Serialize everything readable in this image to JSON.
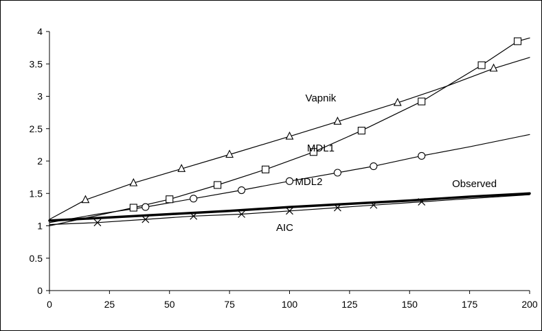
{
  "chart_data": {
    "type": "line",
    "title": "",
    "xlabel": "",
    "ylabel": "",
    "xlim": [
      0,
      200
    ],
    "ylim": [
      0,
      4
    ],
    "x_ticks": [
      0,
      25,
      50,
      75,
      100,
      125,
      150,
      175,
      200
    ],
    "y_ticks": [
      0,
      0.5,
      1,
      1.5,
      2,
      2.5,
      3,
      3.5,
      4
    ],
    "grid": false,
    "legend": "none",
    "colors": {
      "line": "#000000",
      "background": "#ffffff"
    },
    "series": [
      {
        "name": "Vapnik",
        "marker": "triangle",
        "line_width": 1.2,
        "x": [
          0,
          15,
          35,
          55,
          75,
          100,
          120,
          145,
          165,
          185,
          200
        ],
        "y": [
          1.1,
          1.4,
          1.66,
          1.88,
          2.1,
          2.38,
          2.61,
          2.9,
          3.15,
          3.43,
          3.6
        ],
        "marker_x": [
          15,
          35,
          55,
          75,
          100,
          120,
          145,
          185
        ],
        "marker_y": [
          1.4,
          1.66,
          1.88,
          2.1,
          2.38,
          2.61,
          2.9,
          3.43
        ],
        "label_at": [
          113,
          2.92
        ]
      },
      {
        "name": "MDL1",
        "marker": "square",
        "line_width": 1.2,
        "x": [
          0,
          35,
          50,
          70,
          90,
          110,
          130,
          155,
          180,
          195,
          200
        ],
        "y": [
          1.0,
          1.28,
          1.41,
          1.63,
          1.87,
          2.14,
          2.47,
          2.92,
          3.48,
          3.85,
          3.9
        ],
        "marker_x": [
          35,
          50,
          70,
          90,
          110,
          130,
          155,
          180,
          195
        ],
        "marker_y": [
          1.28,
          1.41,
          1.63,
          1.87,
          2.14,
          2.47,
          2.92,
          3.48,
          3.85
        ],
        "label_at": [
          113,
          2.15
        ]
      },
      {
        "name": "MDL2",
        "marker": "circle",
        "line_width": 1.2,
        "x": [
          0,
          20,
          40,
          60,
          80,
          100,
          120,
          135,
          155,
          175,
          200
        ],
        "y": [
          1.05,
          1.18,
          1.29,
          1.42,
          1.55,
          1.69,
          1.82,
          1.92,
          2.08,
          2.22,
          2.41
        ],
        "marker_x": [
          40,
          60,
          80,
          100,
          120,
          135,
          155
        ],
        "marker_y": [
          1.29,
          1.42,
          1.55,
          1.69,
          1.82,
          1.92,
          2.08
        ],
        "label_at": [
          108,
          1.63
        ]
      },
      {
        "name": "Observed",
        "marker": "none",
        "line_width": 3.5,
        "x": [
          0,
          25,
          50,
          75,
          100,
          125,
          150,
          175,
          200
        ],
        "y": [
          1.08,
          1.13,
          1.18,
          1.23,
          1.29,
          1.34,
          1.39,
          1.45,
          1.5
        ],
        "label_at": [
          177,
          1.6
        ]
      },
      {
        "name": "AIC",
        "marker": "x",
        "line_width": 1.2,
        "x": [
          0,
          20,
          40,
          60,
          80,
          100,
          120,
          135,
          155,
          175,
          200
        ],
        "y": [
          1.02,
          1.05,
          1.1,
          1.15,
          1.18,
          1.23,
          1.28,
          1.32,
          1.37,
          1.42,
          1.48
        ],
        "marker_x": [
          20,
          40,
          60,
          80,
          100,
          120,
          135,
          155
        ],
        "marker_y": [
          1.05,
          1.1,
          1.15,
          1.18,
          1.23,
          1.28,
          1.32,
          1.37
        ],
        "label_at": [
          98,
          0.92
        ]
      }
    ]
  }
}
